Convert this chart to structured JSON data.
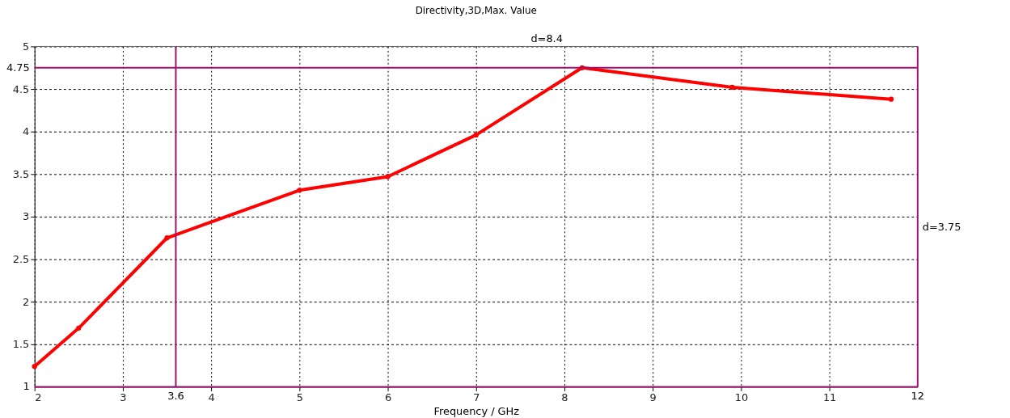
{
  "chart_data": {
    "type": "line",
    "title": "Directivity,3D,Max. Value",
    "xlabel": "Frequency / GHz",
    "x": [
      2,
      2.5,
      3.5,
      5,
      6,
      7,
      8.2,
      9.9,
      11.7
    ],
    "series": [
      {
        "color": "#ff0000",
        "values": [
          1.24,
          1.69,
          2.75,
          3.31,
          3.47,
          3.96,
          4.75,
          4.52,
          4.38
        ]
      }
    ],
    "xlim": [
      2,
      12
    ],
    "xticks": [
      2,
      3,
      4,
      5,
      6,
      7,
      8,
      9,
      10,
      11
    ],
    "ylim": [
      1,
      5
    ],
    "yticks": [
      1.5,
      2,
      2.5,
      3,
      3.5,
      4,
      4.5,
      5
    ],
    "ref_lines": [
      {
        "axis": "x",
        "value": 3.6,
        "label": "3.6",
        "color": "#a0106e"
      },
      {
        "axis": "x",
        "value": 12,
        "label": "12",
        "color": "#a0106e"
      },
      {
        "axis": "y",
        "value": 4.75,
        "label": "4.75",
        "color": "#a0106e"
      },
      {
        "axis": "y",
        "value": 1,
        "label": "1",
        "color": "#a0106e"
      }
    ],
    "annotations": [
      "d=8.4",
      "d=3.75"
    ],
    "grid": true,
    "marker": "circle",
    "line_style": "solid"
  }
}
